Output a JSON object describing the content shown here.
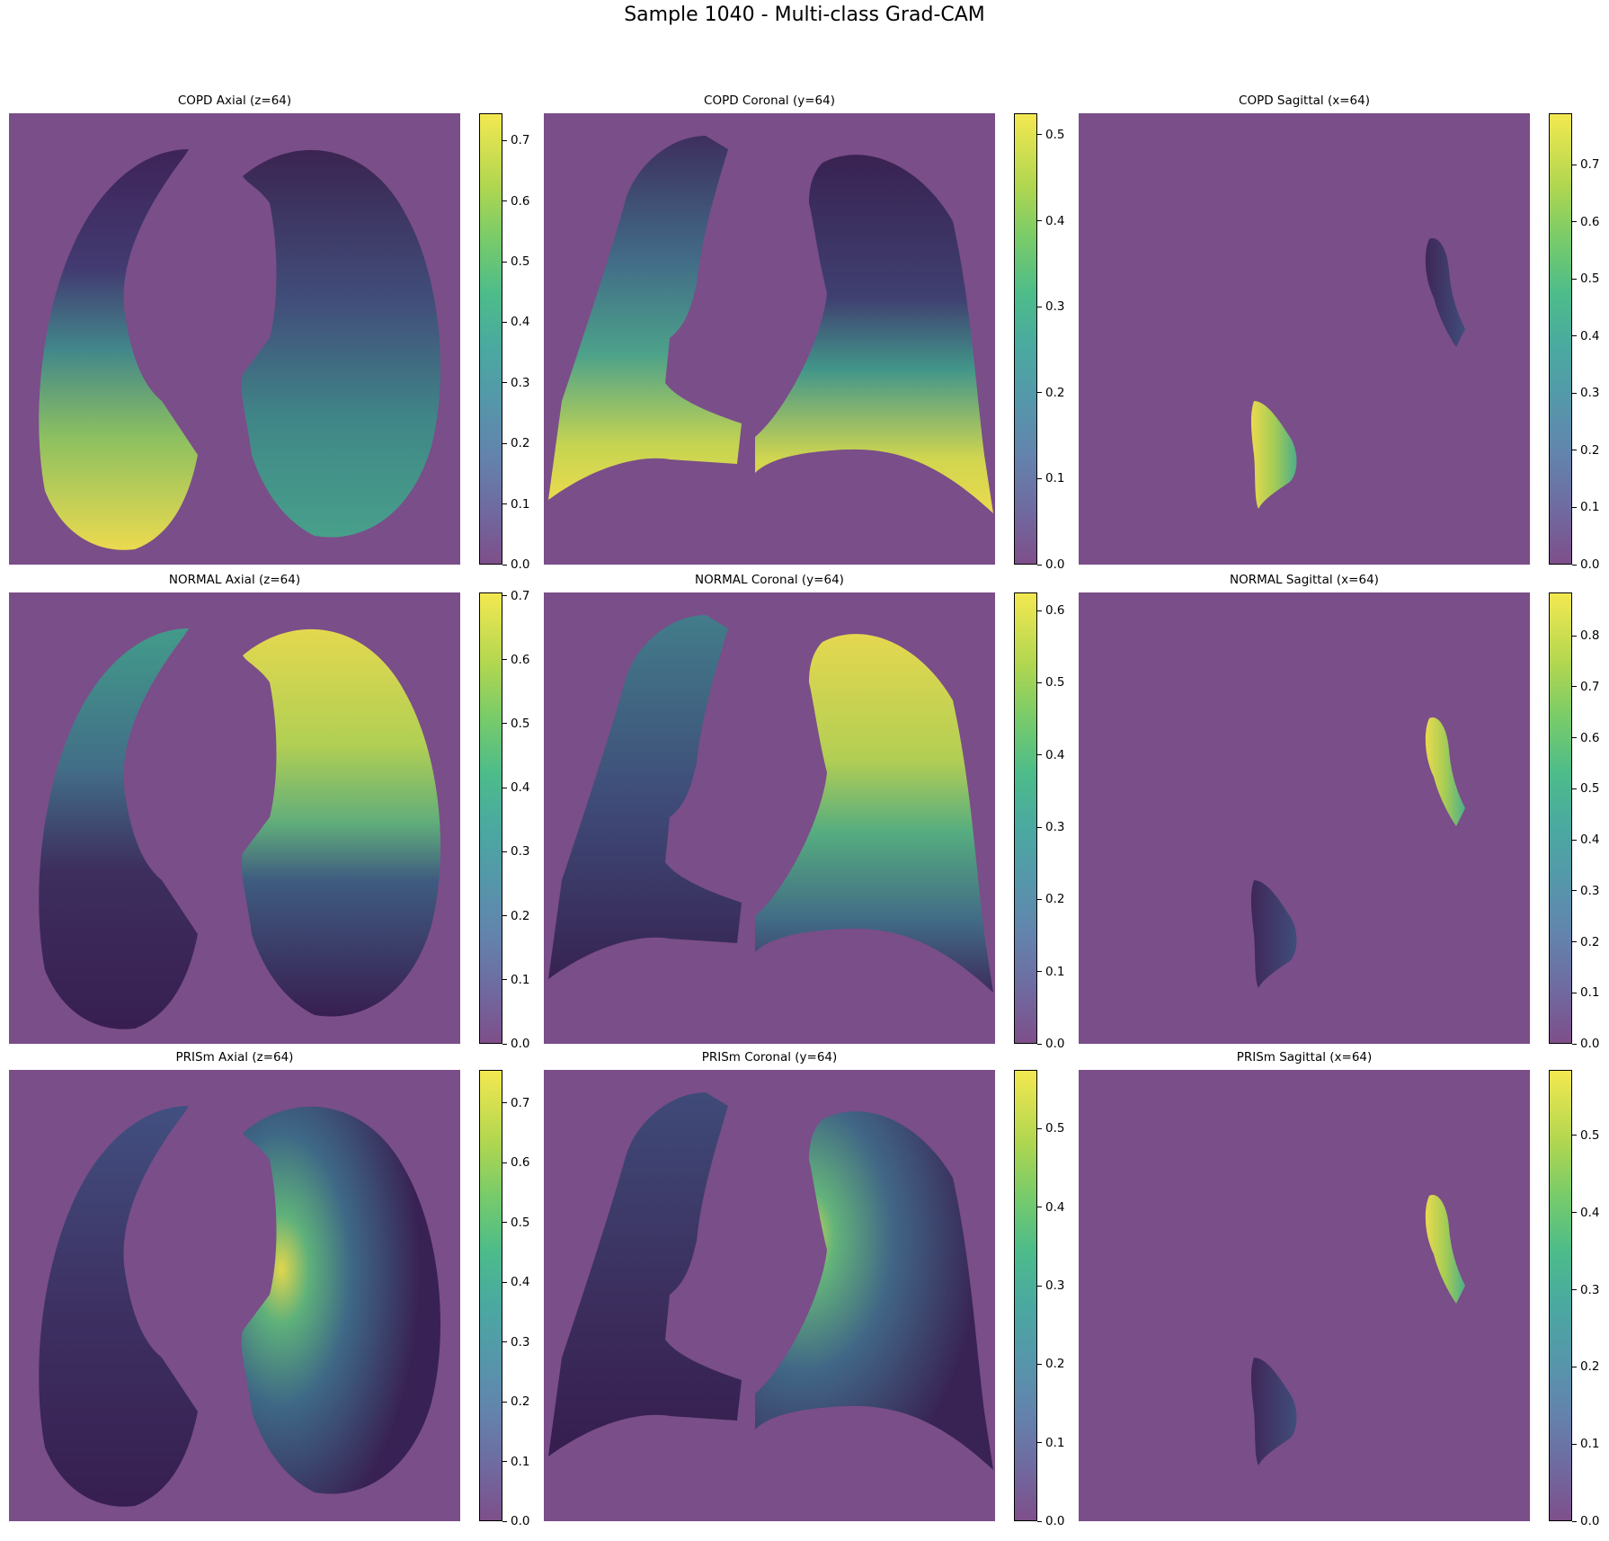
{
  "title": "Sample 1040 - Multi-class Grad-CAM",
  "chart_data": [
    {
      "type": "heatmap",
      "title": "COPD Axial (z=64)",
      "view": "axial",
      "colorbar_max": 0.745,
      "colorbar_ticks": [
        "0.0",
        "0.1",
        "0.2",
        "0.3",
        "0.4",
        "0.5",
        "0.6",
        "0.7"
      ],
      "hot_region": "right lung base (lower-left of image)"
    },
    {
      "type": "heatmap",
      "title": "COPD Coronal (y=64)",
      "view": "coronal",
      "colorbar_max": 0.525,
      "colorbar_ticks": [
        "0.0",
        "0.1",
        "0.2",
        "0.3",
        "0.4",
        "0.5"
      ],
      "hot_region": "lower lung bases"
    },
    {
      "type": "heatmap",
      "title": "COPD Sagittal (x=64)",
      "view": "sagittal",
      "colorbar_max": 0.79,
      "colorbar_ticks": [
        "0.0",
        "0.1",
        "0.2",
        "0.3",
        "0.4",
        "0.5",
        "0.6",
        "0.7"
      ],
      "hot_region": "lower small lung section"
    },
    {
      "type": "heatmap",
      "title": "NORMAL Axial (z=64)",
      "view": "axial",
      "colorbar_max": 0.705,
      "colorbar_ticks": [
        "0.0",
        "0.1",
        "0.2",
        "0.3",
        "0.4",
        "0.5",
        "0.6",
        "0.7"
      ],
      "hot_region": "upper left lung (upper-right of image)"
    },
    {
      "type": "heatmap",
      "title": "NORMAL Coronal (y=64)",
      "view": "coronal",
      "colorbar_max": 0.625,
      "colorbar_ticks": [
        "0.0",
        "0.1",
        "0.2",
        "0.3",
        "0.4",
        "0.5",
        "0.6"
      ],
      "hot_region": "upper lobe of right side of image"
    },
    {
      "type": "heatmap",
      "title": "NORMAL Sagittal (x=64)",
      "view": "sagittal",
      "colorbar_max": 0.885,
      "colorbar_ticks": [
        "0.0",
        "0.1",
        "0.2",
        "0.3",
        "0.4",
        "0.5",
        "0.6",
        "0.7",
        "0.8"
      ],
      "hot_region": "upper small lung section"
    },
    {
      "type": "heatmap",
      "title": "PRISm Axial (z=64)",
      "view": "axial",
      "colorbar_max": 0.755,
      "colorbar_ticks": [
        "0.0",
        "0.1",
        "0.2",
        "0.3",
        "0.4",
        "0.5",
        "0.6",
        "0.7"
      ],
      "hot_region": "hilar region of left lung (right of image)"
    },
    {
      "type": "heatmap",
      "title": "PRISm Coronal (y=64)",
      "view": "coronal",
      "colorbar_max": 0.575,
      "colorbar_ticks": [
        "0.0",
        "0.1",
        "0.2",
        "0.3",
        "0.4",
        "0.5"
      ],
      "hot_region": "mid-hilar region of right side of image"
    },
    {
      "type": "heatmap",
      "title": "PRISm Sagittal (x=64)",
      "view": "sagittal",
      "colorbar_max": 0.585,
      "colorbar_ticks": [
        "0.0",
        "0.1",
        "0.2",
        "0.3",
        "0.4",
        "0.5"
      ],
      "hot_region": "upper small lung section"
    }
  ]
}
